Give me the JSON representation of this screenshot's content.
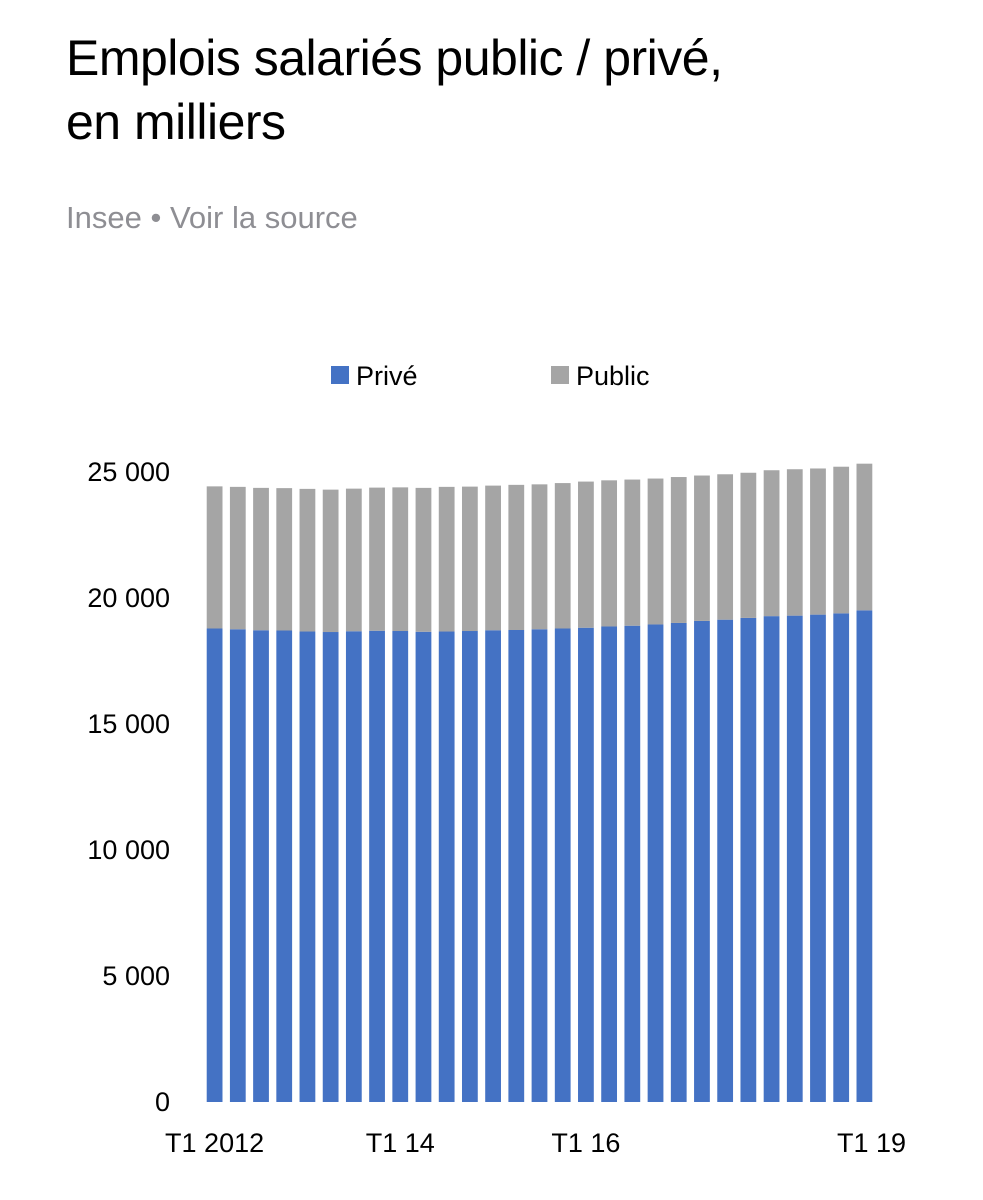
{
  "header": {
    "title_line1": "Emplois salariés public / privé,",
    "title_line2": "en milliers",
    "source_name": "Insee",
    "source_separator": "•",
    "source_link": "Voir la source"
  },
  "colors": {
    "prive": "#4472c4",
    "public": "#a5a5a5",
    "source_text": "#8e8e93"
  },
  "chart_data": {
    "type": "bar",
    "stacked": true,
    "title": "",
    "xlabel": "",
    "ylabel": "",
    "ylim": [
      0,
      25000
    ],
    "yticks": [
      0,
      5000,
      10000,
      15000,
      20000,
      25000
    ],
    "ytick_labels": [
      "0",
      "5 000",
      "10 000",
      "15 000",
      "20 000",
      "25 000"
    ],
    "categories": [
      "T1 2012",
      "T2 2012",
      "T3 2012",
      "T4 2012",
      "T1 2013",
      "T2 2013",
      "T3 2013",
      "T4 2013",
      "T1 2014",
      "T2 2014",
      "T3 2014",
      "T4 2014",
      "T1 2015",
      "T2 2015",
      "T3 2015",
      "T4 2015",
      "T1 2016",
      "T2 2016",
      "T3 2016",
      "T4 2016",
      "T1 2017",
      "T2 2017",
      "T3 2017",
      "T4 2017",
      "T1 2018",
      "T2 2018",
      "T3 2018",
      "T4 2018",
      "T1 2019"
    ],
    "xtick_labels": [
      {
        "index": 0,
        "label": "T1 2012"
      },
      {
        "index": 8,
        "label": "T1 14"
      },
      {
        "index": 16,
        "label": "T1 16"
      },
      {
        "index": 28,
        "label": "T1 19"
      }
    ],
    "legend": {
      "position": "top"
    },
    "grid": false,
    "series": [
      {
        "name": "Privé",
        "color": "#4472c4",
        "values": [
          18790,
          18760,
          18720,
          18710,
          18670,
          18650,
          18680,
          18700,
          18690,
          18660,
          18670,
          18690,
          18720,
          18730,
          18760,
          18790,
          18820,
          18870,
          18900,
          18950,
          19010,
          19090,
          19140,
          19210,
          19280,
          19300,
          19340,
          19390,
          19510
        ]
      },
      {
        "name": "Public",
        "color": "#a5a5a5",
        "values": [
          5640,
          5650,
          5650,
          5650,
          5660,
          5650,
          5660,
          5680,
          5700,
          5710,
          5740,
          5730,
          5740,
          5760,
          5750,
          5770,
          5800,
          5800,
          5800,
          5790,
          5790,
          5770,
          5770,
          5760,
          5790,
          5810,
          5800,
          5820,
          5820
        ]
      }
    ]
  }
}
